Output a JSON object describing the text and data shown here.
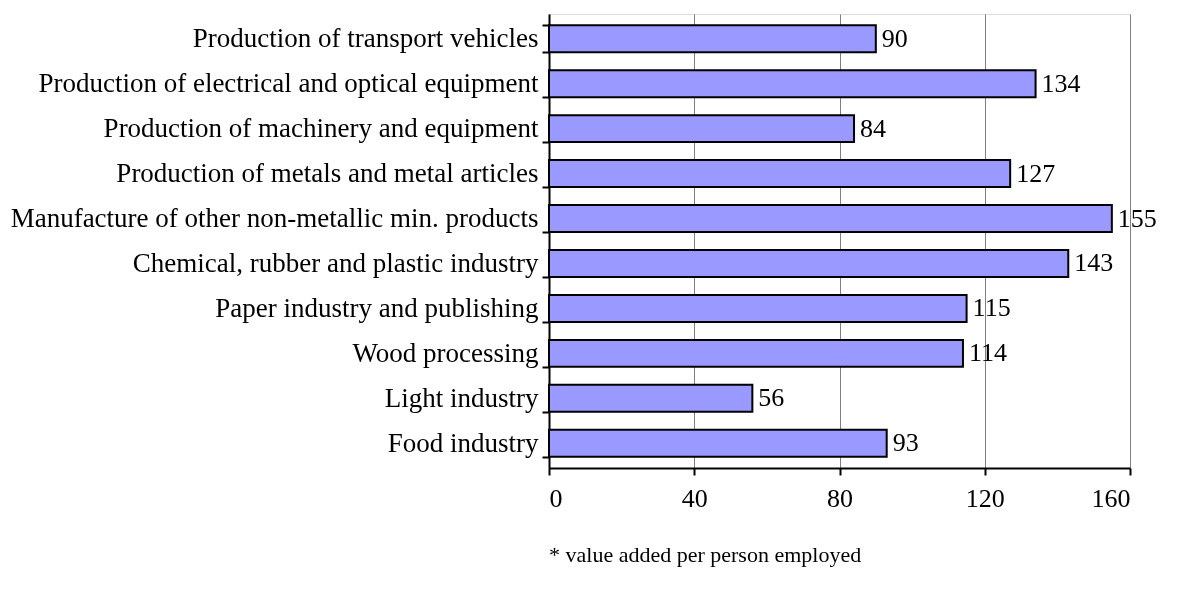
{
  "chart_data": {
    "type": "bar",
    "orientation": "horizontal",
    "categories": [
      "Production of transport vehicles",
      "Production of electrical and optical equipment",
      "Production of machinery and equipment",
      "Production of metals and metal articles",
      "Manufacture of other non-metallic min. products",
      "Chemical, rubber and plastic industry",
      "Paper industry and publishing",
      "Wood processing",
      "Light industry",
      "Food industry"
    ],
    "values": [
      90,
      134,
      84,
      127,
      155,
      143,
      115,
      114,
      56,
      93
    ],
    "color": "#9999ff",
    "xlim": [
      0,
      160
    ],
    "xticks": [
      0,
      40,
      80,
      120,
      160
    ],
    "grid": "x",
    "data_labels": true,
    "annotations": [
      "* value added per person employed"
    ]
  }
}
